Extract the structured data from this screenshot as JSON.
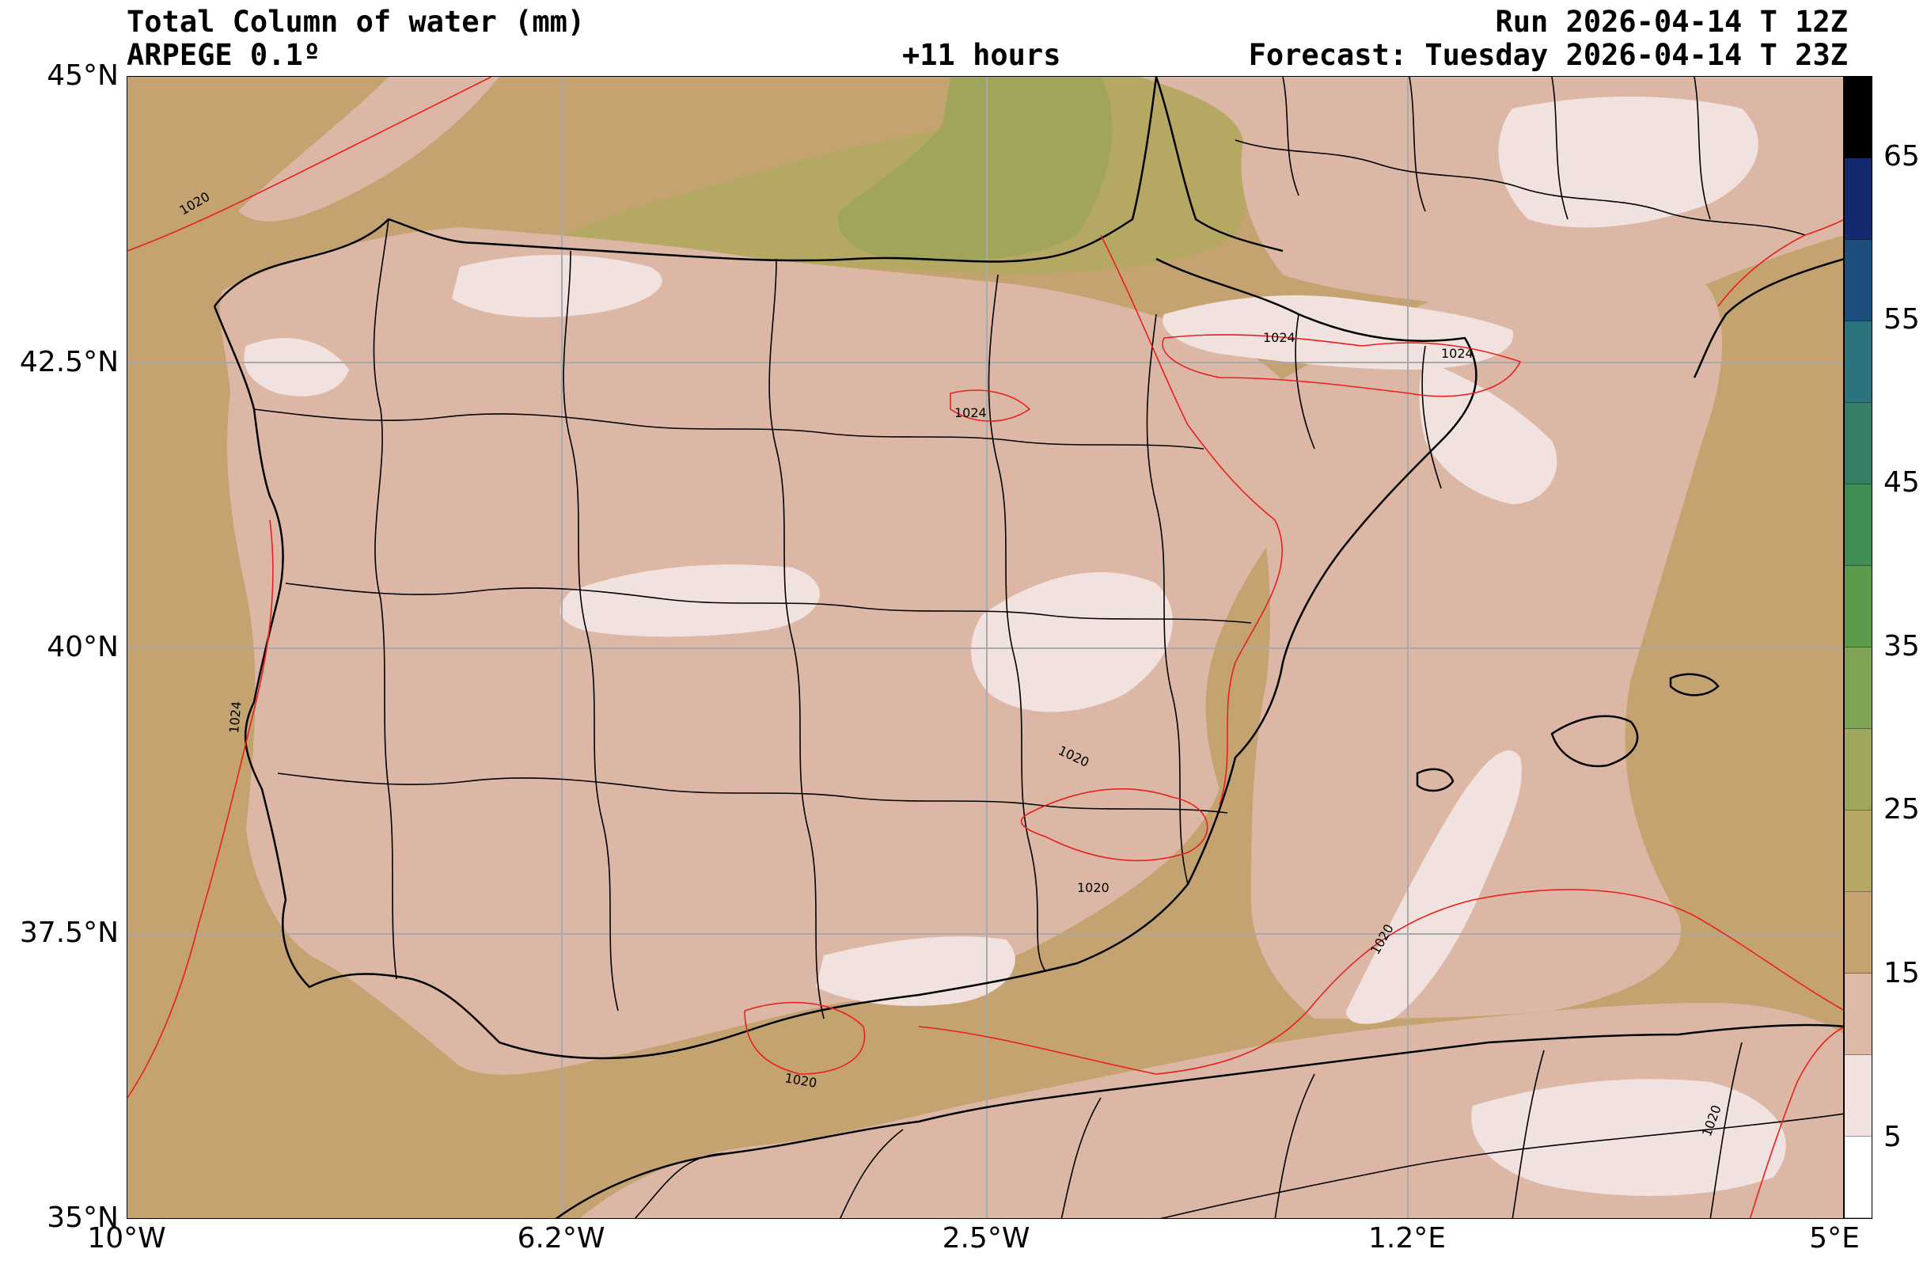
{
  "header": {
    "title": "Total Column of water (mm)",
    "model": "ARPEGE 0.1º",
    "lead_time": "+11 hours",
    "run": "Run 2026-04-14 T 12Z",
    "forecast": "Forecast: Tuesday 2026-04-14 T 23Z"
  },
  "axes": {
    "lat_ticks": [
      "45°N",
      "42.5°N",
      "40°N",
      "37.5°N",
      "35°N"
    ],
    "lon_ticks": [
      "10°W",
      "6.2°W",
      "2.5°W",
      "1.2°E",
      "5°E"
    ]
  },
  "colorbar": {
    "ticks": [
      "65",
      "55",
      "45",
      "35",
      "25",
      "15",
      "5"
    ],
    "colors": [
      "#000000",
      "#132a70",
      "#1d4e7e",
      "#2b747d",
      "#347f66",
      "#3f8f54",
      "#5a9c4c",
      "#7ea355",
      "#9ea75c",
      "#b5a862",
      "#c4a370",
      "#deb8a6",
      "#f1e1df",
      "#ffffff"
    ]
  },
  "isobar_labels": [
    "1020",
    "1020",
    "1020",
    "1020",
    "1020",
    "1020",
    "1024",
    "1024",
    "1024",
    "1024"
  ],
  "map_colors": {
    "land_tan": "#c4a370",
    "pink": "#ddb7a6",
    "light": "#f2e2df",
    "green": "#a3a65c",
    "green_dark": "#8da55a",
    "coast": "#000000",
    "isobar": "#e8201c"
  }
}
